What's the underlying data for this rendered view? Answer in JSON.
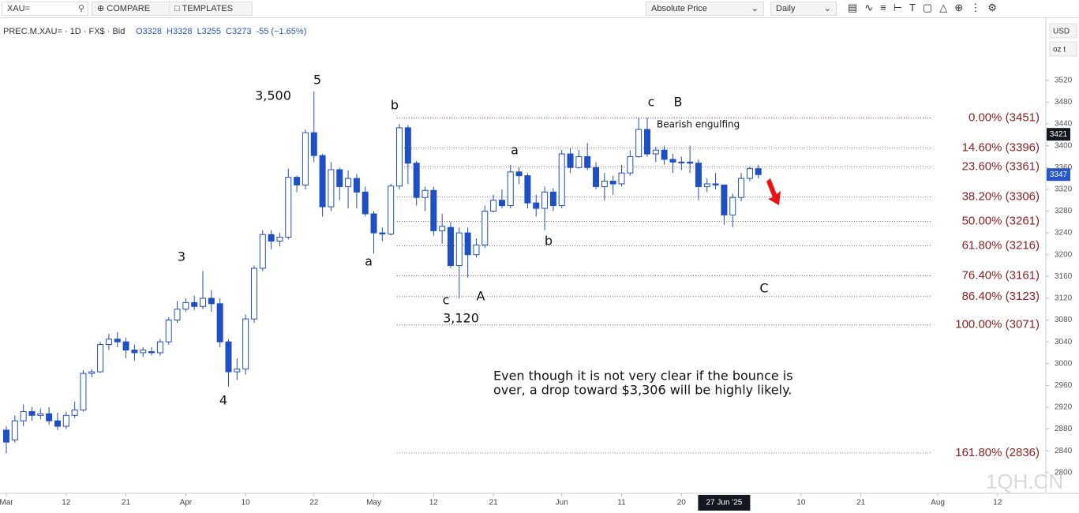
{
  "toolbar": {
    "symbol": "XAU=",
    "compare": "COMPARE",
    "templates": "TEMPLATES",
    "price_mode": "Absolute Price",
    "interval": "Daily",
    "currency": "USD",
    "unit": "oz t"
  },
  "legend": {
    "symbol_info": "PREC.M.XAU= · 1D · FX$ · Bid",
    "ohlc": [
      "O3328",
      "H3328",
      "L3255",
      "C3273",
      "-55 (−1.65%)"
    ]
  },
  "watermark": "1QH.CN",
  "chart_data": {
    "type": "candlestick",
    "up_color": "#ffffff",
    "down_color": "#1e4fc4",
    "border_color": "#1e4fc4",
    "x": [
      "2025-03-03",
      "2025-03-04",
      "2025-03-05",
      "2025-03-06",
      "2025-03-07",
      "2025-03-10",
      "2025-03-11",
      "2025-03-12",
      "2025-03-13",
      "2025-03-14",
      "2025-03-17",
      "2025-03-18",
      "2025-03-19",
      "2025-03-20",
      "2025-03-21",
      "2025-03-24",
      "2025-03-25",
      "2025-03-26",
      "2025-03-27",
      "2025-03-28",
      "2025-03-31",
      "2025-04-01",
      "2025-04-02",
      "2025-04-03",
      "2025-04-04",
      "2025-04-07",
      "2025-04-08",
      "2025-04-09",
      "2025-04-10",
      "2025-04-11",
      "2025-04-14",
      "2025-04-15",
      "2025-04-16",
      "2025-04-17",
      "2025-04-18",
      "2025-04-21",
      "2025-04-22",
      "2025-04-23",
      "2025-04-24",
      "2025-04-25",
      "2025-04-28",
      "2025-04-29",
      "2025-04-30",
      "2025-05-01",
      "2025-05-02",
      "2025-05-05",
      "2025-05-06",
      "2025-05-07",
      "2025-05-08",
      "2025-05-09",
      "2025-05-12",
      "2025-05-13",
      "2025-05-14",
      "2025-05-15",
      "2025-05-16",
      "2025-05-19",
      "2025-05-20",
      "2025-05-21",
      "2025-05-22",
      "2025-05-23",
      "2025-05-26",
      "2025-05-27",
      "2025-05-28",
      "2025-05-29",
      "2025-05-30",
      "2025-06-02",
      "2025-06-03",
      "2025-06-04",
      "2025-06-05",
      "2025-06-06",
      "2025-06-09",
      "2025-06-10",
      "2025-06-11",
      "2025-06-12",
      "2025-06-13",
      "2025-06-16",
      "2025-06-17",
      "2025-06-18",
      "2025-06-19",
      "2025-06-20",
      "2025-06-23",
      "2025-06-24",
      "2025-06-25",
      "2025-06-26",
      "2025-06-27",
      "2025-06-30",
      "2025-07-01",
      "2025-07-02",
      "2025-07-03"
    ],
    "open": [
      2878,
      2860,
      2895,
      2912,
      2905,
      2908,
      2895,
      2885,
      2905,
      2915,
      2982,
      2985,
      3035,
      3045,
      3040,
      3025,
      3020,
      3022,
      3020,
      3040,
      3080,
      3100,
      3112,
      3105,
      3120,
      3110,
      3040,
      2985,
      2990,
      3082,
      3175,
      3237,
      3225,
      3232,
      3342,
      3328,
      3424,
      3382,
      3288,
      3356,
      3325,
      3340,
      3315,
      3275,
      3240,
      3238,
      3326,
      3433,
      3368,
      3305,
      3318,
      3244,
      3250,
      3180,
      3240,
      3200,
      3218,
      3280,
      3300,
      3290,
      3352,
      3345,
      3295,
      3285,
      3315,
      3290,
      3385,
      3360,
      3380,
      3360,
      3325,
      3335,
      3330,
      3350,
      3380,
      3430,
      3385,
      3392,
      3375,
      3370,
      3370,
      3368,
      3325,
      3330,
      3328,
      3273,
      3305,
      3340,
      3358
    ],
    "high": [
      2885,
      2905,
      2925,
      2920,
      2918,
      2920,
      2910,
      2912,
      2930,
      2988,
      2990,
      3040,
      3055,
      3058,
      3048,
      3035,
      3030,
      3030,
      3045,
      3085,
      3115,
      3120,
      3125,
      3170,
      3135,
      3120,
      3045,
      3010,
      3090,
      3180,
      3245,
      3245,
      3240,
      3358,
      3345,
      3430,
      3500,
      3385,
      3370,
      3360,
      3355,
      3348,
      3325,
      3280,
      3250,
      3330,
      3440,
      3438,
      3372,
      3325,
      3325,
      3275,
      3260,
      3250,
      3250,
      3230,
      3290,
      3310,
      3320,
      3365,
      3360,
      3350,
      3310,
      3325,
      3322,
      3392,
      3395,
      3392,
      3405,
      3370,
      3350,
      3345,
      3365,
      3392,
      3452,
      3452,
      3398,
      3400,
      3385,
      3380,
      3400,
      3375,
      3340,
      3350,
      3328,
      3312,
      3350,
      3362,
      3365
    ],
    "low": [
      2835,
      2855,
      2885,
      2895,
      2898,
      2888,
      2878,
      2880,
      2900,
      2912,
      2975,
      2983,
      3025,
      3030,
      3010,
      3005,
      3012,
      3015,
      3015,
      3035,
      3075,
      3095,
      3098,
      3100,
      3095,
      3030,
      2958,
      2970,
      2980,
      3075,
      3170,
      3210,
      3215,
      3228,
      3315,
      3320,
      3370,
      3270,
      3280,
      3300,
      3285,
      3285,
      3270,
      3202,
      3225,
      3235,
      3320,
      3330,
      3290,
      3280,
      3235,
      3220,
      3175,
      3120,
      3158,
      3195,
      3212,
      3278,
      3285,
      3285,
      3330,
      3285,
      3270,
      3245,
      3280,
      3285,
      3350,
      3358,
      3355,
      3320,
      3300,
      3310,
      3325,
      3345,
      3378,
      3380,
      3370,
      3365,
      3350,
      3355,
      3350,
      3300,
      3315,
      3320,
      3255,
      3250,
      3298,
      3335,
      3340
    ],
    "close": [
      2856,
      2895,
      2912,
      2905,
      2908,
      2895,
      2885,
      2905,
      2915,
      2982,
      2985,
      3035,
      3045,
      3040,
      3025,
      3020,
      3025,
      3020,
      3040,
      3080,
      3100,
      3112,
      3105,
      3120,
      3110,
      3040,
      2985,
      2990,
      3082,
      3175,
      3237,
      3225,
      3232,
      3342,
      3328,
      3424,
      3382,
      3288,
      3356,
      3325,
      3340,
      3315,
      3275,
      3240,
      3238,
      3326,
      3433,
      3368,
      3305,
      3318,
      3244,
      3252,
      3180,
      3240,
      3200,
      3218,
      3280,
      3300,
      3290,
      3352,
      3345,
      3295,
      3285,
      3315,
      3290,
      3385,
      3360,
      3380,
      3360,
      3325,
      3335,
      3330,
      3350,
      3380,
      3430,
      3385,
      3392,
      3375,
      3370,
      3370,
      3368,
      3325,
      3330,
      3328,
      3273,
      3305,
      3340,
      3358,
      3347
    ],
    "xlim": [
      "2025-03-03",
      "2025-08-19"
    ],
    "xticks": [
      {
        "value": "2025-03-03",
        "label": "Mar"
      },
      {
        "value": "2025-03-12",
        "label": "12"
      },
      {
        "value": "2025-03-21",
        "label": "21"
      },
      {
        "value": "2025-04-01",
        "label": "Apr"
      },
      {
        "value": "2025-04-10",
        "label": "10"
      },
      {
        "value": "2025-04-22",
        "label": "22"
      },
      {
        "value": "2025-05-01",
        "label": "May"
      },
      {
        "value": "2025-05-12",
        "label": "12"
      },
      {
        "value": "2025-05-21",
        "label": "21"
      },
      {
        "value": "2025-06-02",
        "label": "Jun"
      },
      {
        "value": "2025-06-11",
        "label": "11"
      },
      {
        "value": "2025-06-20",
        "label": "20"
      },
      {
        "value": "2025-07-10",
        "label": "10"
      },
      {
        "value": "2025-07-21",
        "label": "21"
      },
      {
        "value": "2025-08-01",
        "label": "Aug"
      },
      {
        "value": "2025-08-12",
        "label": "12"
      }
    ],
    "crosshair_x": {
      "value": "2025-06-27",
      "label": "27 Jun '25"
    },
    "ylim": [
      2762,
      3627
    ],
    "yticks": [
      2800,
      2840,
      2880,
      2920,
      2960,
      3000,
      3040,
      3080,
      3120,
      3160,
      3200,
      3240,
      3280,
      3320,
      3360,
      3400,
      3440,
      3480,
      3520
    ],
    "crosshair_price": 3421,
    "last_price": 3347,
    "fib_color": "#8b1f1f",
    "fib_levels": [
      {
        "value": 3451,
        "label": "0.00% (3451)"
      },
      {
        "value": 3396,
        "label": "14.60% (3396)"
      },
      {
        "value": 3361,
        "label": "23.60% (3361)"
      },
      {
        "value": 3306,
        "label": "38.20% (3306)"
      },
      {
        "value": 3261,
        "label": "50.00% (3261)"
      },
      {
        "value": 3216,
        "label": "61.80% (3216)"
      },
      {
        "value": 3161,
        "label": "76.40% (3161)"
      },
      {
        "value": 3123,
        "label": "86.40% (3123)"
      },
      {
        "value": 3071,
        "label": "100.00% (3071)"
      },
      {
        "value": 2836,
        "label": "161.80% (2836)"
      }
    ],
    "annotations": [
      "5",
      "3,500",
      "3",
      "4",
      "a",
      "b",
      "c",
      "3,120",
      "A",
      "a",
      "b",
      "c",
      "B",
      "Bearish engulfing",
      "C"
    ],
    "note": [
      "Even though it is not very clear if the bounce is",
      "over, a drop toward $3,306 will be highly likely."
    ]
  }
}
